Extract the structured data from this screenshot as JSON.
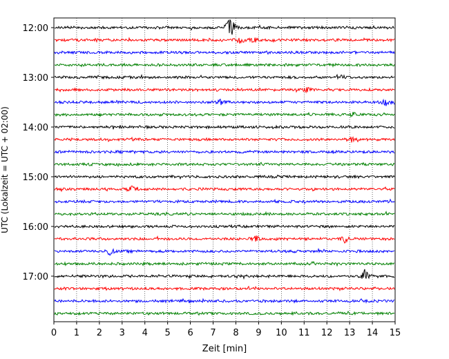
{
  "chart_data": {
    "type": "line",
    "xlabel": "Zeit  [min]",
    "ylabel": "UTC (Lokalzeit = UTC + 02:00)",
    "xlim": [
      0,
      15
    ],
    "x_ticks": [
      "0",
      "1",
      "2",
      "3",
      "4",
      "5",
      "6",
      "7",
      "8",
      "9",
      "10",
      "11",
      "12",
      "13",
      "14",
      "15"
    ],
    "y_ticks": [
      "12:00",
      "13:00",
      "14:00",
      "15:00",
      "16:00",
      "17:00"
    ],
    "grid": "vertical dotted at each minute",
    "trace_colors": [
      "#000000",
      "#ff0000",
      "#0000ff",
      "#008000"
    ],
    "traces_start": "12:00",
    "traces_end": "17:45",
    "trace_interval_minutes": 15,
    "trace_count": 24,
    "events": [
      {
        "trace": 0,
        "minute": 7.8,
        "amp": 14
      },
      {
        "trace": 0,
        "minute": 7.65,
        "amp": 6
      },
      {
        "trace": 1,
        "minute": 8.2,
        "amp": 5
      },
      {
        "trace": 1,
        "minute": 8.8,
        "amp": 4
      },
      {
        "trace": 4,
        "minute": 12.7,
        "amp": 4
      },
      {
        "trace": 5,
        "minute": 11.1,
        "amp": 4
      },
      {
        "trace": 6,
        "minute": 7.3,
        "amp": 4
      },
      {
        "trace": 6,
        "minute": 14.6,
        "amp": 5
      },
      {
        "trace": 7,
        "minute": 13.2,
        "amp": 4
      },
      {
        "trace": 9,
        "minute": 13.1,
        "amp": 4
      },
      {
        "trace": 13,
        "minute": 3.4,
        "amp": 5
      },
      {
        "trace": 17,
        "minute": 8.9,
        "amp": 5
      },
      {
        "trace": 17,
        "minute": 12.8,
        "amp": 6
      },
      {
        "trace": 18,
        "minute": 2.45,
        "amp": 6
      },
      {
        "trace": 20,
        "minute": 13.7,
        "amp": 12
      }
    ]
  }
}
